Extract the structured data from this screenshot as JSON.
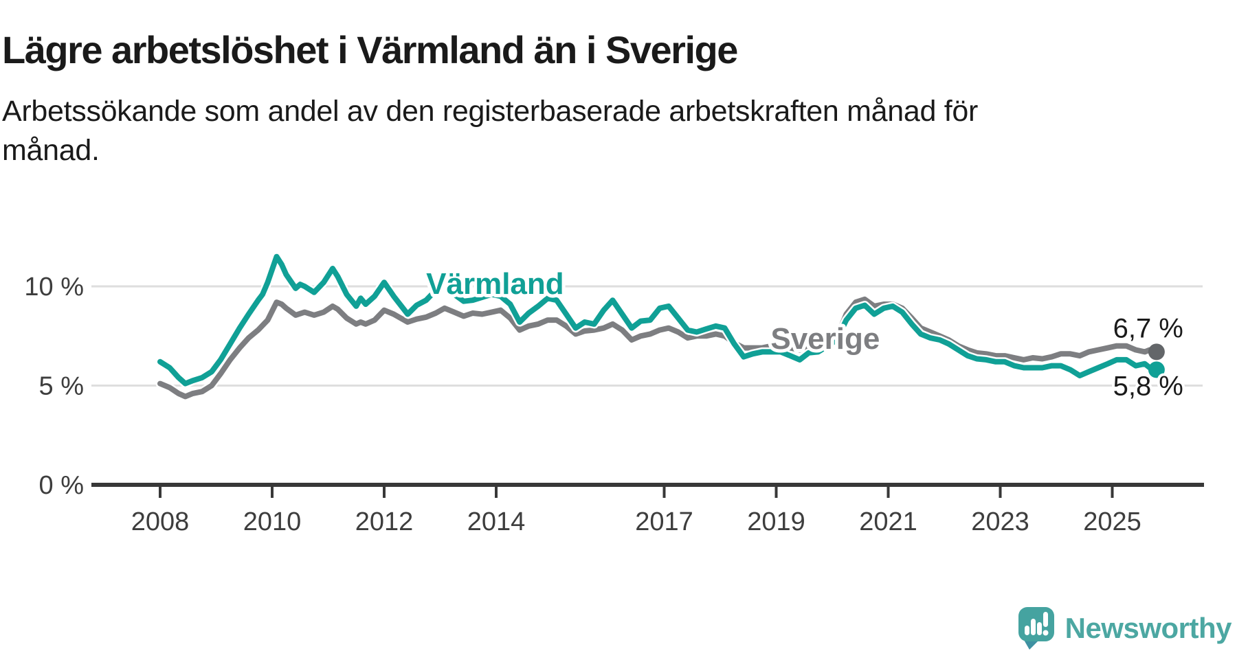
{
  "header": {
    "title": "Lägre arbetslöshet i Värmland än i Sverige",
    "subtitle_lines": [
      "Arbetssökande som andel av den registerbaserade arbetskraften månad för",
      "månad."
    ]
  },
  "footer": {
    "brand": "Newsworthy"
  },
  "colors": {
    "varmland": "#10a096",
    "sverige": "#7d7e81",
    "sverige_dot": "#636669",
    "axis": "#383838",
    "axis_text": "#3d3d3d",
    "grid": "#dedede",
    "label_text": "#1a1a1a",
    "brand": "#4ca7a2"
  },
  "chart_data": {
    "type": "line",
    "title": "Lägre arbetslöshet i Värmland än i Sverige",
    "subtitle": "Arbetssökande som andel av den registerbaserade arbetskraften månad för månad.",
    "unit": "%",
    "grid": "horizontal",
    "legend_position": "inline-labels",
    "ylim": [
      0,
      12
    ],
    "xlim": [
      2007.7,
      2026.3
    ],
    "y_ticks": [
      {
        "value": 0,
        "label": "0 %"
      },
      {
        "value": 5,
        "label": "5 %"
      },
      {
        "value": 10,
        "label": "10 %"
      }
    ],
    "x_ticks": [
      2008,
      2010,
      2012,
      2014,
      2017,
      2019,
      2021,
      2023,
      2025
    ],
    "series": [
      {
        "id": "varmland",
        "name": "Värmland",
        "color": "#10a096",
        "dot_color": "#10a096",
        "end_label": "5,8 %",
        "end_label_side": "below",
        "label_x": 2012.75,
        "label_y": 9.62,
        "points": [
          [
            2008.0,
            6.2
          ],
          [
            2008.17,
            5.9
          ],
          [
            2008.33,
            5.4
          ],
          [
            2008.45,
            5.1
          ],
          [
            2008.58,
            5.25
          ],
          [
            2008.75,
            5.4
          ],
          [
            2008.92,
            5.7
          ],
          [
            2009.08,
            6.3
          ],
          [
            2009.25,
            7.1
          ],
          [
            2009.42,
            7.9
          ],
          [
            2009.58,
            8.6
          ],
          [
            2009.75,
            9.3
          ],
          [
            2009.83,
            9.6
          ],
          [
            2009.92,
            10.2
          ],
          [
            2010.08,
            11.5
          ],
          [
            2010.17,
            11.1
          ],
          [
            2010.25,
            10.6
          ],
          [
            2010.42,
            9.9
          ],
          [
            2010.5,
            10.1
          ],
          [
            2010.58,
            10.0
          ],
          [
            2010.75,
            9.7
          ],
          [
            2010.92,
            10.2
          ],
          [
            2011.08,
            10.9
          ],
          [
            2011.17,
            10.5
          ],
          [
            2011.33,
            9.6
          ],
          [
            2011.5,
            9.0
          ],
          [
            2011.58,
            9.4
          ],
          [
            2011.67,
            9.1
          ],
          [
            2011.83,
            9.5
          ],
          [
            2012.0,
            10.2
          ],
          [
            2012.17,
            9.5
          ],
          [
            2012.42,
            8.6
          ],
          [
            2012.58,
            9.05
          ],
          [
            2012.75,
            9.3
          ],
          [
            2012.92,
            9.8
          ],
          [
            2013.08,
            10.1
          ],
          [
            2013.25,
            9.6
          ],
          [
            2013.42,
            9.25
          ],
          [
            2013.58,
            9.3
          ],
          [
            2013.75,
            9.45
          ],
          [
            2013.92,
            9.6
          ],
          [
            2014.08,
            9.5
          ],
          [
            2014.25,
            9.1
          ],
          [
            2014.42,
            8.2
          ],
          [
            2014.58,
            8.65
          ],
          [
            2014.75,
            9.0
          ],
          [
            2014.92,
            9.4
          ],
          [
            2015.08,
            9.3
          ],
          [
            2015.25,
            8.6
          ],
          [
            2015.42,
            7.9
          ],
          [
            2015.58,
            8.2
          ],
          [
            2015.75,
            8.1
          ],
          [
            2015.92,
            8.8
          ],
          [
            2016.08,
            9.3
          ],
          [
            2016.25,
            8.6
          ],
          [
            2016.42,
            7.9
          ],
          [
            2016.58,
            8.25
          ],
          [
            2016.75,
            8.3
          ],
          [
            2016.92,
            8.9
          ],
          [
            2017.08,
            9.0
          ],
          [
            2017.25,
            8.4
          ],
          [
            2017.42,
            7.8
          ],
          [
            2017.58,
            7.7
          ],
          [
            2017.75,
            7.85
          ],
          [
            2017.92,
            8.0
          ],
          [
            2018.08,
            7.9
          ],
          [
            2018.25,
            7.1
          ],
          [
            2018.42,
            6.45
          ],
          [
            2018.58,
            6.6
          ],
          [
            2018.75,
            6.7
          ],
          [
            2018.92,
            6.7
          ],
          [
            2019.08,
            6.7
          ],
          [
            2019.25,
            6.5
          ],
          [
            2019.42,
            6.3
          ],
          [
            2019.58,
            6.65
          ],
          [
            2019.75,
            6.7
          ],
          [
            2019.92,
            7.0
          ],
          [
            2020.08,
            7.3
          ],
          [
            2020.25,
            8.3
          ],
          [
            2020.42,
            8.9
          ],
          [
            2020.58,
            9.05
          ],
          [
            2020.75,
            8.6
          ],
          [
            2020.92,
            8.9
          ],
          [
            2021.08,
            9.0
          ],
          [
            2021.25,
            8.7
          ],
          [
            2021.42,
            8.1
          ],
          [
            2021.58,
            7.6
          ],
          [
            2021.75,
            7.4
          ],
          [
            2021.92,
            7.3
          ],
          [
            2022.08,
            7.1
          ],
          [
            2022.25,
            6.8
          ],
          [
            2022.42,
            6.5
          ],
          [
            2022.58,
            6.35
          ],
          [
            2022.75,
            6.3
          ],
          [
            2022.92,
            6.2
          ],
          [
            2023.08,
            6.2
          ],
          [
            2023.25,
            6.0
          ],
          [
            2023.42,
            5.9
          ],
          [
            2023.58,
            5.9
          ],
          [
            2023.75,
            5.9
          ],
          [
            2023.92,
            6.0
          ],
          [
            2024.08,
            6.0
          ],
          [
            2024.25,
            5.8
          ],
          [
            2024.42,
            5.5
          ],
          [
            2024.58,
            5.7
          ],
          [
            2024.75,
            5.9
          ],
          [
            2024.92,
            6.1
          ],
          [
            2025.08,
            6.3
          ],
          [
            2025.25,
            6.3
          ],
          [
            2025.42,
            6.0
          ],
          [
            2025.58,
            6.1
          ],
          [
            2025.67,
            5.9
          ],
          [
            2025.79,
            5.8
          ]
        ]
      },
      {
        "id": "sverige",
        "name": "Sverige",
        "color": "#7d7e81",
        "dot_color": "#636669",
        "end_label": "6,7 %",
        "end_label_side": "above",
        "label_x": 2018.9,
        "label_y": 6.85,
        "points": [
          [
            2008.0,
            5.1
          ],
          [
            2008.17,
            4.9
          ],
          [
            2008.33,
            4.6
          ],
          [
            2008.45,
            4.45
          ],
          [
            2008.58,
            4.6
          ],
          [
            2008.75,
            4.7
          ],
          [
            2008.92,
            5.0
          ],
          [
            2009.08,
            5.6
          ],
          [
            2009.25,
            6.3
          ],
          [
            2009.42,
            6.9
          ],
          [
            2009.58,
            7.4
          ],
          [
            2009.75,
            7.8
          ],
          [
            2009.92,
            8.3
          ],
          [
            2010.08,
            9.2
          ],
          [
            2010.17,
            9.1
          ],
          [
            2010.25,
            8.9
          ],
          [
            2010.42,
            8.55
          ],
          [
            2010.58,
            8.7
          ],
          [
            2010.75,
            8.55
          ],
          [
            2010.92,
            8.7
          ],
          [
            2011.08,
            9.0
          ],
          [
            2011.17,
            8.85
          ],
          [
            2011.33,
            8.4
          ],
          [
            2011.5,
            8.1
          ],
          [
            2011.58,
            8.2
          ],
          [
            2011.67,
            8.1
          ],
          [
            2011.83,
            8.3
          ],
          [
            2012.0,
            8.8
          ],
          [
            2012.17,
            8.6
          ],
          [
            2012.42,
            8.2
          ],
          [
            2012.58,
            8.35
          ],
          [
            2012.75,
            8.45
          ],
          [
            2012.92,
            8.65
          ],
          [
            2013.08,
            8.9
          ],
          [
            2013.25,
            8.7
          ],
          [
            2013.42,
            8.5
          ],
          [
            2013.58,
            8.65
          ],
          [
            2013.75,
            8.6
          ],
          [
            2013.92,
            8.7
          ],
          [
            2014.08,
            8.8
          ],
          [
            2014.25,
            8.4
          ],
          [
            2014.42,
            7.8
          ],
          [
            2014.58,
            8.0
          ],
          [
            2014.75,
            8.1
          ],
          [
            2014.92,
            8.3
          ],
          [
            2015.08,
            8.3
          ],
          [
            2015.25,
            8.0
          ],
          [
            2015.42,
            7.6
          ],
          [
            2015.58,
            7.75
          ],
          [
            2015.75,
            7.8
          ],
          [
            2015.92,
            7.9
          ],
          [
            2016.08,
            8.1
          ],
          [
            2016.25,
            7.8
          ],
          [
            2016.42,
            7.3
          ],
          [
            2016.58,
            7.5
          ],
          [
            2016.75,
            7.6
          ],
          [
            2016.92,
            7.8
          ],
          [
            2017.08,
            7.9
          ],
          [
            2017.25,
            7.7
          ],
          [
            2017.42,
            7.4
          ],
          [
            2017.58,
            7.5
          ],
          [
            2017.75,
            7.5
          ],
          [
            2017.92,
            7.6
          ],
          [
            2018.08,
            7.5
          ],
          [
            2018.25,
            7.15
          ],
          [
            2018.42,
            6.9
          ],
          [
            2018.58,
            6.9
          ],
          [
            2018.75,
            6.9
          ],
          [
            2018.92,
            7.0
          ],
          [
            2019.08,
            7.0
          ],
          [
            2019.25,
            6.9
          ],
          [
            2019.42,
            6.8
          ],
          [
            2019.58,
            6.9
          ],
          [
            2019.75,
            7.0
          ],
          [
            2019.92,
            7.1
          ],
          [
            2020.08,
            7.4
          ],
          [
            2020.25,
            8.6
          ],
          [
            2020.42,
            9.2
          ],
          [
            2020.58,
            9.35
          ],
          [
            2020.75,
            9.0
          ],
          [
            2020.92,
            9.1
          ],
          [
            2021.08,
            9.1
          ],
          [
            2021.25,
            8.9
          ],
          [
            2021.42,
            8.4
          ],
          [
            2021.58,
            7.9
          ],
          [
            2021.75,
            7.7
          ],
          [
            2021.92,
            7.5
          ],
          [
            2022.08,
            7.3
          ],
          [
            2022.25,
            7.0
          ],
          [
            2022.42,
            6.8
          ],
          [
            2022.58,
            6.65
          ],
          [
            2022.75,
            6.6
          ],
          [
            2022.92,
            6.5
          ],
          [
            2023.08,
            6.5
          ],
          [
            2023.25,
            6.4
          ],
          [
            2023.42,
            6.3
          ],
          [
            2023.58,
            6.4
          ],
          [
            2023.75,
            6.35
          ],
          [
            2023.92,
            6.45
          ],
          [
            2024.08,
            6.6
          ],
          [
            2024.25,
            6.6
          ],
          [
            2024.42,
            6.5
          ],
          [
            2024.58,
            6.7
          ],
          [
            2024.75,
            6.8
          ],
          [
            2024.92,
            6.9
          ],
          [
            2025.08,
            7.0
          ],
          [
            2025.25,
            7.0
          ],
          [
            2025.42,
            6.8
          ],
          [
            2025.58,
            6.7
          ],
          [
            2025.67,
            6.8
          ],
          [
            2025.79,
            6.7
          ]
        ]
      }
    ]
  }
}
